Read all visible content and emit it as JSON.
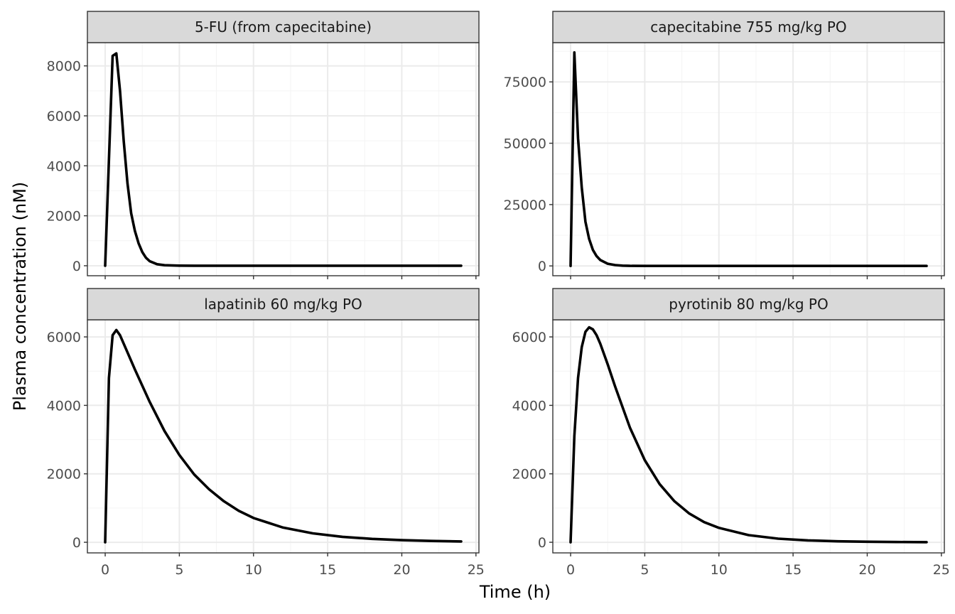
{
  "chart_data": {
    "type": "line",
    "xlabel": "Time (h)",
    "ylabel": "Plasma concentration (nM)",
    "layout": "2x2 facet grid",
    "grid": true,
    "line_color": "#000000",
    "facets": [
      {
        "label": "5-FU (from capecitabine)",
        "xlim": [
          -1.2,
          25.2
        ],
        "ylim": [
          -400,
          8930
        ],
        "xticks": [
          0,
          5,
          10,
          15,
          20,
          25
        ],
        "yticks": [
          0,
          2000,
          4000,
          6000,
          8000
        ],
        "series": [
          {
            "x": [
              0,
              0.5,
              0.75,
              1.0,
              1.25,
              1.5,
              1.75,
              2.0,
              2.25,
              2.5,
              2.75,
              3.0,
              3.5,
              4.0,
              5.0,
              6.0,
              8.0,
              12.0,
              16.0,
              20.0,
              24.0
            ],
            "y": [
              0,
              8400,
              8500,
              7000,
              5000,
              3300,
              2100,
              1400,
              900,
              550,
              320,
              180,
              60,
              20,
              3,
              0,
              0,
              0,
              0,
              0,
              0
            ]
          }
        ]
      },
      {
        "label": "capecitabine 755 mg/kg PO",
        "xlim": [
          -1.2,
          25.2
        ],
        "ylim": [
          -4000,
          91000
        ],
        "xticks": [
          0,
          5,
          10,
          15,
          20,
          25
        ],
        "yticks": [
          0,
          25000,
          50000,
          75000
        ],
        "series": [
          {
            "x": [
              0,
              0.25,
              0.5,
              0.75,
              1.0,
              1.25,
              1.5,
              1.75,
              2.0,
              2.5,
              3.0,
              3.5,
              4.0,
              5.0,
              6.0,
              8.0,
              12.0,
              16.0,
              20.0,
              24.0
            ],
            "y": [
              0,
              87000,
              52000,
              32000,
              18000,
              11000,
              6500,
              4000,
              2400,
              900,
              350,
              120,
              40,
              5,
              0,
              0,
              0,
              0,
              0,
              0
            ]
          }
        ]
      },
      {
        "label": "lapatinib 60 mg/kg PO",
        "xlim": [
          -1.2,
          25.2
        ],
        "ylim": [
          -310,
          6500
        ],
        "xticks": [
          0,
          5,
          10,
          15,
          20,
          25
        ],
        "yticks": [
          0,
          2000,
          4000,
          6000
        ],
        "series": [
          {
            "x": [
              0,
              0.25,
              0.5,
              0.75,
              1.0,
              1.5,
              2,
              3,
              4,
              5,
              6,
              7,
              8,
              9,
              10,
              12,
              14,
              16,
              18,
              20,
              22,
              24
            ],
            "y": [
              0,
              4800,
              6050,
              6200,
              6050,
              5550,
              5050,
              4100,
              3250,
              2550,
              1980,
              1550,
              1200,
              920,
              710,
              430,
              260,
              160,
              100,
              62,
              38,
              24
            ]
          }
        ]
      },
      {
        "label": "pyrotinib 80 mg/kg PO",
        "xlim": [
          -1.2,
          25.2
        ],
        "ylim": [
          -310,
          6500
        ],
        "xticks": [
          0,
          5,
          10,
          15,
          20,
          25
        ],
        "yticks": [
          0,
          2000,
          4000,
          6000
        ],
        "series": [
          {
            "x": [
              0,
              0.25,
              0.5,
              0.75,
              1.0,
              1.25,
              1.5,
              1.75,
              2,
              2.5,
              3,
              4,
              5,
              6,
              7,
              8,
              9,
              10,
              12,
              14,
              16,
              18,
              20,
              22,
              24
            ],
            "y": [
              0,
              3100,
              4800,
              5700,
              6150,
              6280,
              6220,
              6050,
              5800,
              5200,
              4550,
              3350,
              2400,
              1700,
              1200,
              840,
              590,
              420,
              210,
              105,
              55,
              28,
              15,
              8,
              4
            ]
          }
        ]
      }
    ]
  }
}
